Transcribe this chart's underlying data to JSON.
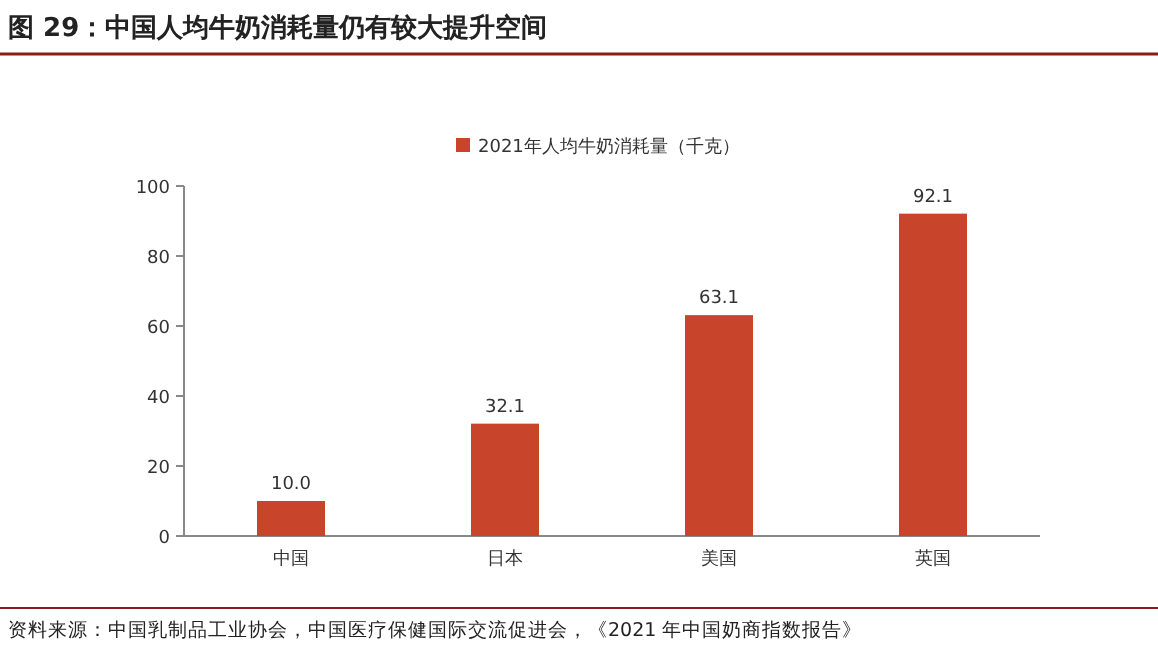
{
  "chart_data": {
    "type": "bar",
    "title": "图 29：中国人均牛奶消耗量仍有较大提升空间",
    "categories": [
      "中国",
      "日本",
      "美国",
      "英国"
    ],
    "series": [
      {
        "name": "2021年人均牛奶消耗量（千克）",
        "color": "#c8442a",
        "values": [
          10.0,
          32.1,
          63.1,
          92.1
        ]
      }
    ],
    "value_labels": [
      "10.0",
      "32.1",
      "63.1",
      "92.1"
    ],
    "ylim": [
      0,
      100
    ],
    "yticks": [
      0,
      20,
      40,
      60,
      80,
      100
    ],
    "legend": "top",
    "grid": false,
    "annotations": [
      "资料来源：中国乳制品工业协会，中国医疗保健国际交流促进会，《2021 年中国奶商指数报告》"
    ]
  }
}
